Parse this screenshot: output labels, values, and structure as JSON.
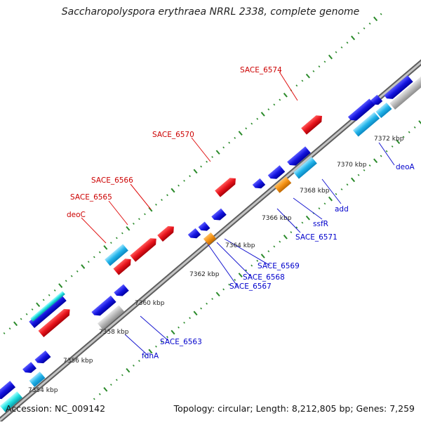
{
  "title": "Saccharopolyspora erythraea NRRL 2338, complete genome",
  "footer": {
    "accession": "Accession: NC_009142",
    "stats": "Topology: circular; Length: 8,212,805 bp; Genes: 7,259"
  },
  "colors": {
    "forward_strand": "#e8141c",
    "reverse_strand": "#1414e0",
    "light_blue": "#22b4ea",
    "orange": "#f59214",
    "grey": "#b8b8b8",
    "cyan": "#20e0e0",
    "tick_green": "#2a8a2a",
    "label_red": "#cc0000",
    "label_blue": "#0000cc"
  },
  "scale_ticks": [
    "7354 kbp",
    "7356 kbp",
    "7358 kbp",
    "7360 kbp",
    "7362 kbp",
    "7364 kbp",
    "7366 kbp",
    "7368 kbp",
    "7370 kbp",
    "7372 kbp"
  ],
  "gene_labels_forward": [
    "SACE_6574",
    "SACE_6570",
    "SACE_6566",
    "SACE_6565",
    "deoC"
  ],
  "gene_labels_reverse": [
    "deoA",
    "add",
    "ssfR",
    "SACE_6571",
    "SACE_6569",
    "SACE_6568",
    "SACE_6567",
    "SACE_6563",
    "fdhA"
  ]
}
